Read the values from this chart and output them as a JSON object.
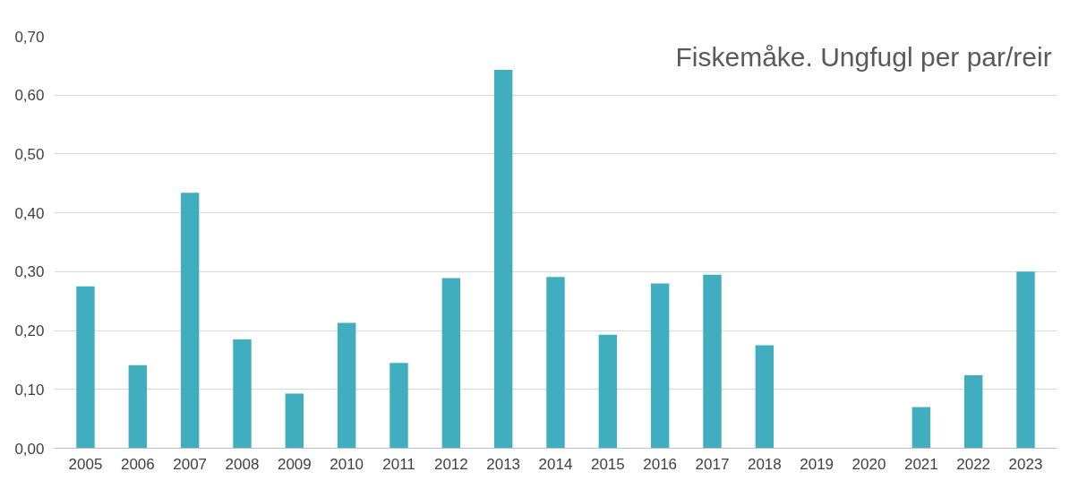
{
  "chart_data": {
    "type": "bar",
    "title": "Fiskemåke. Ungfugl per par/reir",
    "categories": [
      "2005",
      "2006",
      "2007",
      "2008",
      "2009",
      "2010",
      "2011",
      "2012",
      "2013",
      "2014",
      "2015",
      "2016",
      "2017",
      "2018",
      "2019",
      "2020",
      "2021",
      "2022",
      "2023"
    ],
    "values": [
      0.275,
      0.141,
      0.434,
      0.185,
      0.093,
      0.213,
      0.145,
      0.289,
      0.643,
      0.291,
      0.193,
      0.28,
      0.295,
      0.175,
      0,
      0,
      0.07,
      0.124,
      0.3
    ],
    "color": "#41aebf",
    "ylim": [
      0,
      0.7
    ],
    "yticks": [
      {
        "value": 0,
        "label": "0,00"
      },
      {
        "value": 0.1,
        "label": "0,10"
      },
      {
        "value": 0.2,
        "label": "0,20"
      },
      {
        "value": 0.3,
        "label": "0,30"
      },
      {
        "value": 0.4,
        "label": "0,40"
      },
      {
        "value": 0.5,
        "label": "0,50"
      },
      {
        "value": 0.6,
        "label": "0,60"
      },
      {
        "value": 0.7,
        "label": "0,70"
      }
    ],
    "grid": "y"
  }
}
